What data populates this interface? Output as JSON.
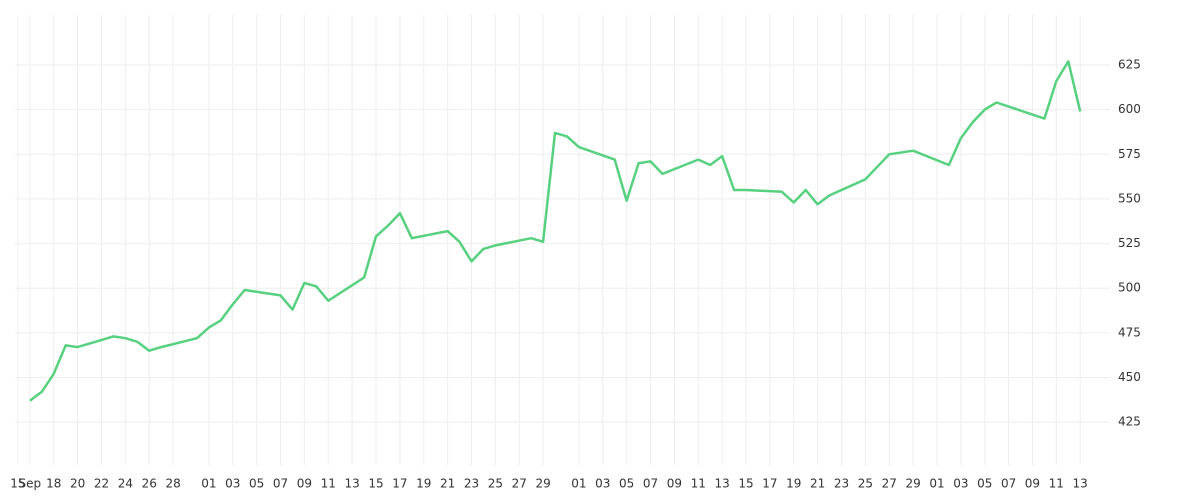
{
  "chart_data": {
    "type": "line",
    "x": [
      "09-16",
      "09-17",
      "09-18",
      "09-19",
      "09-20",
      "09-23",
      "09-24",
      "09-25",
      "09-26",
      "09-27",
      "09-30",
      "10-01",
      "10-02",
      "10-03",
      "10-04",
      "10-07",
      "10-08",
      "10-09",
      "10-10",
      "10-11",
      "10-14",
      "10-15",
      "10-16",
      "10-17",
      "10-18",
      "10-21",
      "10-22",
      "10-23",
      "10-24",
      "10-25",
      "10-28",
      "10-29",
      "10-30",
      "10-31",
      "11-01",
      "11-04",
      "11-05",
      "11-06",
      "11-07",
      "11-08",
      "11-11",
      "11-12",
      "11-13",
      "11-14",
      "11-15",
      "11-18",
      "11-19",
      "11-20",
      "11-21",
      "11-22",
      "11-25",
      "11-26",
      "11-27",
      "11-29",
      "12-02",
      "12-03",
      "12-04",
      "12-05",
      "12-06",
      "12-10",
      "12-11",
      "12-12",
      "12-13"
    ],
    "series": [
      {
        "color": "#57d17f",
        "values": [
          437,
          442,
          452,
          468,
          467,
          473,
          472,
          470,
          465,
          467,
          472,
          478,
          482,
          491,
          499,
          496,
          488,
          503,
          501,
          493,
          506,
          529,
          535,
          542,
          528,
          532,
          526,
          515,
          522,
          524,
          528,
          526,
          587,
          585,
          579,
          572,
          549,
          570,
          571,
          564,
          572,
          569,
          574,
          555,
          555,
          554,
          548,
          555,
          547,
          552,
          561,
          568,
          575,
          577,
          569,
          584,
          593,
          600,
          604,
          595,
          616,
          627,
          599
        ]
      }
    ],
    "xlim": [
      "09-14",
      "12-16"
    ],
    "xticks": [
      {
        "value": "09-15",
        "label": "15"
      },
      {
        "value": "09-16",
        "label": "Sep"
      },
      {
        "value": "09-18",
        "label": "18"
      },
      {
        "value": "09-20",
        "label": "20"
      },
      {
        "value": "09-22",
        "label": "22"
      },
      {
        "value": "09-24",
        "label": "24"
      },
      {
        "value": "09-26",
        "label": "26"
      },
      {
        "value": "09-28",
        "label": "28"
      },
      {
        "value": "10-01",
        "label": "01"
      },
      {
        "value": "10-03",
        "label": "03"
      },
      {
        "value": "10-05",
        "label": "05"
      },
      {
        "value": "10-07",
        "label": "07"
      },
      {
        "value": "10-09",
        "label": "09"
      },
      {
        "value": "10-11",
        "label": "11"
      },
      {
        "value": "10-13",
        "label": "13"
      },
      {
        "value": "10-15",
        "label": "15"
      },
      {
        "value": "10-17",
        "label": "17"
      },
      {
        "value": "10-19",
        "label": "19"
      },
      {
        "value": "10-21",
        "label": "21"
      },
      {
        "value": "10-23",
        "label": "23"
      },
      {
        "value": "10-25",
        "label": "25"
      },
      {
        "value": "10-27",
        "label": "27"
      },
      {
        "value": "10-29",
        "label": "29"
      },
      {
        "value": "11-01",
        "label": "01"
      },
      {
        "value": "11-03",
        "label": "03"
      },
      {
        "value": "11-05",
        "label": "05"
      },
      {
        "value": "11-07",
        "label": "07"
      },
      {
        "value": "11-09",
        "label": "09"
      },
      {
        "value": "11-11",
        "label": "11"
      },
      {
        "value": "11-13",
        "label": "13"
      },
      {
        "value": "11-15",
        "label": "15"
      },
      {
        "value": "11-17",
        "label": "17"
      },
      {
        "value": "11-19",
        "label": "19"
      },
      {
        "value": "11-21",
        "label": "21"
      },
      {
        "value": "11-23",
        "label": "23"
      },
      {
        "value": "11-25",
        "label": "25"
      },
      {
        "value": "11-27",
        "label": "27"
      },
      {
        "value": "11-29",
        "label": "29"
      },
      {
        "value": "12-01",
        "label": "01"
      },
      {
        "value": "12-03",
        "label": "03"
      },
      {
        "value": "12-05",
        "label": "05"
      },
      {
        "value": "12-07",
        "label": "07"
      },
      {
        "value": "12-09",
        "label": "09"
      },
      {
        "value": "12-11",
        "label": "11"
      },
      {
        "value": "12-13",
        "label": "13"
      }
    ],
    "ylim": [
      401,
      653
    ],
    "yticks": [
      425,
      450,
      475,
      500,
      525,
      550,
      575,
      600,
      625
    ],
    "grid": true
  }
}
